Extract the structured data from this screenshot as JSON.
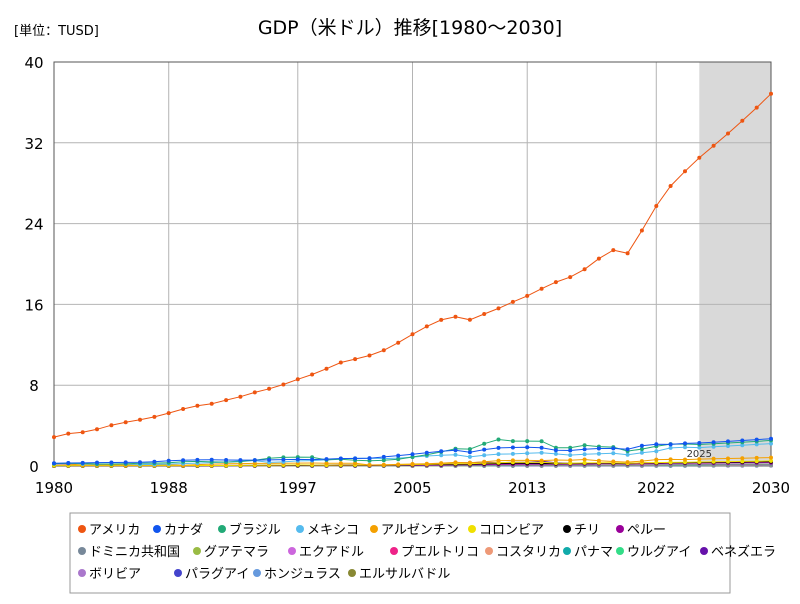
{
  "chart_data": {
    "type": "line",
    "title": "GDP（米ドル）推移[1980～2030]",
    "unit_label": "[単位：TUSD]",
    "forecast_label": "2025",
    "forecast_start": 2025,
    "xlim": [
      1980,
      2030
    ],
    "ylim": [
      0,
      40
    ],
    "x_ticks": [
      1980,
      1988,
      1997,
      2005,
      2013,
      2022,
      2030
    ],
    "y_ticks": [
      0,
      8,
      16,
      24,
      32,
      40
    ],
    "grid": true,
    "legend_position": "bottom",
    "x": [
      1980,
      1981,
      1982,
      1983,
      1984,
      1985,
      1986,
      1987,
      1988,
      1989,
      1990,
      1991,
      1992,
      1993,
      1994,
      1995,
      1996,
      1997,
      1998,
      1999,
      2000,
      2001,
      2002,
      2003,
      2004,
      2005,
      2006,
      2007,
      2008,
      2009,
      2010,
      2011,
      2012,
      2013,
      2014,
      2015,
      2016,
      2017,
      2018,
      2019,
      2020,
      2021,
      2022,
      2023,
      2024,
      2025,
      2026,
      2027,
      2028,
      2029,
      2030
    ],
    "series": [
      {
        "name": "アメリカ",
        "color": "#ee5511",
        "values": [
          2.86,
          3.21,
          3.34,
          3.63,
          4.04,
          4.34,
          4.58,
          4.86,
          5.24,
          5.64,
          5.96,
          6.16,
          6.52,
          6.86,
          7.29,
          7.64,
          8.07,
          8.58,
          9.06,
          9.63,
          10.25,
          10.58,
          10.94,
          11.46,
          12.21,
          13.04,
          13.82,
          14.47,
          14.77,
          14.48,
          15.05,
          15.6,
          16.25,
          16.84,
          17.55,
          18.21,
          18.7,
          19.48,
          20.53,
          21.38,
          21.06,
          23.32,
          25.74,
          27.72,
          29.18,
          30.51,
          31.71,
          32.92,
          34.18,
          35.49,
          36.85
        ]
      },
      {
        "name": "カナダ",
        "color": "#1155ee",
        "values": [
          0.27,
          0.3,
          0.31,
          0.34,
          0.35,
          0.36,
          0.37,
          0.43,
          0.51,
          0.57,
          0.6,
          0.61,
          0.59,
          0.58,
          0.58,
          0.6,
          0.63,
          0.65,
          0.63,
          0.68,
          0.74,
          0.74,
          0.76,
          0.9,
          1.03,
          1.17,
          1.32,
          1.47,
          1.55,
          1.37,
          1.62,
          1.79,
          1.83,
          1.85,
          1.81,
          1.56,
          1.53,
          1.65,
          1.73,
          1.74,
          1.65,
          2.01,
          2.16,
          2.14,
          2.24,
          2.28,
          2.35,
          2.44,
          2.52,
          2.61,
          2.7
        ]
      },
      {
        "name": "ブラジル",
        "color": "#22aa77",
        "values": [
          0.24,
          0.26,
          0.28,
          0.2,
          0.2,
          0.22,
          0.27,
          0.29,
          0.32,
          0.43,
          0.46,
          0.41,
          0.39,
          0.44,
          0.56,
          0.77,
          0.85,
          0.88,
          0.86,
          0.6,
          0.66,
          0.56,
          0.51,
          0.56,
          0.67,
          0.89,
          1.11,
          1.4,
          1.7,
          1.67,
          2.21,
          2.62,
          2.47,
          2.47,
          2.46,
          1.8,
          1.8,
          2.06,
          1.92,
          1.87,
          1.48,
          1.67,
          1.95,
          2.17,
          2.18,
          2.13,
          2.2,
          2.28,
          2.36,
          2.44,
          2.53
        ]
      },
      {
        "name": "メキシコ",
        "color": "#55bbee",
        "values": [
          0.23,
          0.29,
          0.2,
          0.17,
          0.2,
          0.21,
          0.15,
          0.16,
          0.2,
          0.24,
          0.29,
          0.34,
          0.39,
          0.5,
          0.53,
          0.36,
          0.41,
          0.5,
          0.53,
          0.6,
          0.71,
          0.76,
          0.77,
          0.73,
          0.78,
          0.88,
          0.99,
          1.06,
          1.11,
          0.9,
          1.06,
          1.18,
          1.2,
          1.27,
          1.32,
          1.2,
          1.08,
          1.16,
          1.22,
          1.27,
          1.12,
          1.31,
          1.47,
          1.79,
          1.85,
          1.82,
          1.9,
          1.98,
          2.06,
          2.14,
          2.22
        ]
      },
      {
        "name": "アルゼンチン",
        "color": "#f4a000",
        "values": [
          0.23,
          0.2,
          0.1,
          0.1,
          0.12,
          0.09,
          0.11,
          0.11,
          0.13,
          0.08,
          0.14,
          0.19,
          0.23,
          0.24,
          0.26,
          0.26,
          0.27,
          0.29,
          0.3,
          0.28,
          0.28,
          0.27,
          0.1,
          0.13,
          0.16,
          0.2,
          0.23,
          0.29,
          0.36,
          0.33,
          0.42,
          0.53,
          0.55,
          0.55,
          0.53,
          0.59,
          0.56,
          0.64,
          0.52,
          0.45,
          0.39,
          0.49,
          0.63,
          0.65,
          0.63,
          0.68,
          0.71,
          0.74,
          0.77,
          0.8,
          0.83
        ]
      },
      {
        "name": "コロンビア",
        "color": "#f0e000",
        "values": [
          0.04,
          0.04,
          0.04,
          0.04,
          0.04,
          0.04,
          0.04,
          0.04,
          0.04,
          0.04,
          0.05,
          0.05,
          0.05,
          0.06,
          0.08,
          0.09,
          0.1,
          0.11,
          0.1,
          0.09,
          0.1,
          0.1,
          0.1,
          0.09,
          0.12,
          0.15,
          0.16,
          0.21,
          0.24,
          0.23,
          0.29,
          0.33,
          0.37,
          0.38,
          0.38,
          0.29,
          0.28,
          0.31,
          0.33,
          0.32,
          0.27,
          0.32,
          0.34,
          0.36,
          0.38,
          0.4,
          0.42,
          0.44,
          0.46,
          0.48,
          0.5
        ]
      },
      {
        "name": "チリ",
        "color": "#000000",
        "values": [
          0.03,
          0.03,
          0.02,
          0.02,
          0.02,
          0.02,
          0.02,
          0.02,
          0.03,
          0.03,
          0.03,
          0.04,
          0.04,
          0.05,
          0.06,
          0.07,
          0.08,
          0.08,
          0.08,
          0.08,
          0.08,
          0.07,
          0.07,
          0.08,
          0.1,
          0.12,
          0.15,
          0.17,
          0.18,
          0.17,
          0.22,
          0.25,
          0.27,
          0.28,
          0.26,
          0.24,
          0.25,
          0.28,
          0.3,
          0.28,
          0.25,
          0.32,
          0.3,
          0.34,
          0.33,
          0.35,
          0.37,
          0.39,
          0.4,
          0.42,
          0.44
        ]
      },
      {
        "name": "ペルー",
        "color": "#990099",
        "values": [
          0.02,
          0.03,
          0.03,
          0.02,
          0.02,
          0.02,
          0.02,
          0.03,
          0.02,
          0.03,
          0.03,
          0.03,
          0.04,
          0.04,
          0.04,
          0.05,
          0.06,
          0.06,
          0.06,
          0.05,
          0.05,
          0.05,
          0.06,
          0.06,
          0.07,
          0.08,
          0.09,
          0.1,
          0.12,
          0.12,
          0.15,
          0.17,
          0.19,
          0.2,
          0.2,
          0.19,
          0.19,
          0.21,
          0.22,
          0.23,
          0.2,
          0.22,
          0.24,
          0.27,
          0.28,
          0.29,
          0.3,
          0.31,
          0.32,
          0.33,
          0.34
        ]
      },
      {
        "name": "ドミニカ共和国",
        "color": "#778899",
        "values": [
          0.01,
          0.01,
          0.01,
          0.01,
          0.01,
          0.01,
          0.01,
          0.01,
          0.01,
          0.01,
          0.01,
          0.01,
          0.01,
          0.01,
          0.02,
          0.02,
          0.02,
          0.02,
          0.02,
          0.02,
          0.02,
          0.03,
          0.03,
          0.02,
          0.02,
          0.04,
          0.04,
          0.04,
          0.05,
          0.05,
          0.05,
          0.06,
          0.06,
          0.06,
          0.07,
          0.07,
          0.07,
          0.08,
          0.08,
          0.09,
          0.08,
          0.09,
          0.11,
          0.12,
          0.12,
          0.13,
          0.14,
          0.15,
          0.16,
          0.17,
          0.18
        ]
      },
      {
        "name": "グアテマラ",
        "color": "#99bb44",
        "values": [
          0.01,
          0.01,
          0.01,
          0.01,
          0.01,
          0.01,
          0.01,
          0.01,
          0.01,
          0.01,
          0.01,
          0.01,
          0.01,
          0.01,
          0.01,
          0.01,
          0.02,
          0.02,
          0.02,
          0.02,
          0.02,
          0.02,
          0.02,
          0.02,
          0.02,
          0.03,
          0.03,
          0.03,
          0.04,
          0.04,
          0.04,
          0.05,
          0.05,
          0.05,
          0.06,
          0.06,
          0.07,
          0.07,
          0.07,
          0.08,
          0.08,
          0.09,
          0.1,
          0.1,
          0.11,
          0.12,
          0.12,
          0.13,
          0.14,
          0.14,
          0.15
        ]
      },
      {
        "name": "エクアドル",
        "color": "#cc66dd",
        "values": [
          0.02,
          0.02,
          0.02,
          0.02,
          0.02,
          0.02,
          0.02,
          0.02,
          0.02,
          0.02,
          0.02,
          0.02,
          0.02,
          0.02,
          0.02,
          0.03,
          0.03,
          0.03,
          0.03,
          0.02,
          0.02,
          0.02,
          0.03,
          0.03,
          0.04,
          0.04,
          0.05,
          0.05,
          0.06,
          0.06,
          0.07,
          0.08,
          0.09,
          0.1,
          0.1,
          0.1,
          0.1,
          0.1,
          0.11,
          0.11,
          0.1,
          0.11,
          0.12,
          0.12,
          0.12,
          0.13,
          0.13,
          0.14,
          0.14,
          0.15,
          0.15
        ]
      },
      {
        "name": "プエルトリコ",
        "color": "#ee2288",
        "values": [
          0.01,
          0.02,
          0.02,
          0.02,
          0.02,
          0.02,
          0.02,
          0.02,
          0.03,
          0.03,
          0.03,
          0.03,
          0.03,
          0.04,
          0.04,
          0.04,
          0.04,
          0.05,
          0.05,
          0.05,
          0.06,
          0.07,
          0.07,
          0.07,
          0.08,
          0.08,
          0.09,
          0.09,
          0.09,
          0.1,
          0.1,
          0.1,
          0.1,
          0.1,
          0.1,
          0.1,
          0.1,
          0.1,
          0.1,
          0.1,
          0.1,
          0.11,
          0.11,
          0.12,
          0.12,
          0.12,
          0.12,
          0.13,
          0.13,
          0.13,
          0.14
        ]
      },
      {
        "name": "コスタリカ",
        "color": "#ee9977",
        "values": [
          0.01,
          0.01,
          0.01,
          0.01,
          0.01,
          0.01,
          0.01,
          0.01,
          0.01,
          0.01,
          0.01,
          0.01,
          0.01,
          0.01,
          0.01,
          0.01,
          0.01,
          0.01,
          0.01,
          0.01,
          0.01,
          0.02,
          0.02,
          0.02,
          0.02,
          0.02,
          0.02,
          0.03,
          0.03,
          0.03,
          0.04,
          0.04,
          0.05,
          0.05,
          0.05,
          0.05,
          0.06,
          0.06,
          0.06,
          0.06,
          0.06,
          0.06,
          0.07,
          0.09,
          0.1,
          0.1,
          0.1,
          0.11,
          0.11,
          0.12,
          0.12
        ]
      },
      {
        "name": "パナマ",
        "color": "#11aaaa",
        "values": [
          0.01,
          0.01,
          0.01,
          0.01,
          0.01,
          0.01,
          0.01,
          0.01,
          0.01,
          0.01,
          0.01,
          0.01,
          0.01,
          0.01,
          0.01,
          0.01,
          0.01,
          0.01,
          0.01,
          0.01,
          0.01,
          0.01,
          0.01,
          0.01,
          0.02,
          0.02,
          0.02,
          0.02,
          0.03,
          0.03,
          0.03,
          0.03,
          0.04,
          0.05,
          0.05,
          0.05,
          0.06,
          0.06,
          0.06,
          0.07,
          0.05,
          0.06,
          0.08,
          0.08,
          0.09,
          0.09,
          0.1,
          0.1,
          0.11,
          0.11,
          0.12
        ]
      },
      {
        "name": "ウルグアイ",
        "color": "#33dd88",
        "values": [
          0.01,
          0.01,
          0.01,
          0.01,
          0.01,
          0.01,
          0.01,
          0.01,
          0.01,
          0.01,
          0.01,
          0.01,
          0.01,
          0.02,
          0.02,
          0.02,
          0.02,
          0.02,
          0.02,
          0.02,
          0.02,
          0.02,
          0.01,
          0.01,
          0.01,
          0.02,
          0.02,
          0.02,
          0.03,
          0.03,
          0.04,
          0.05,
          0.05,
          0.06,
          0.06,
          0.05,
          0.05,
          0.06,
          0.06,
          0.06,
          0.05,
          0.06,
          0.07,
          0.08,
          0.08,
          0.08,
          0.08,
          0.09,
          0.09,
          0.09,
          0.1
        ]
      },
      {
        "name": "ベネズエラ",
        "color": "#6611aa",
        "values": [
          0.07,
          0.08,
          0.08,
          0.08,
          0.06,
          0.06,
          0.06,
          0.05,
          0.06,
          0.04,
          0.05,
          0.05,
          0.06,
          0.06,
          0.06,
          0.08,
          0.07,
          0.09,
          0.09,
          0.1,
          0.12,
          0.12,
          0.09,
          0.08,
          0.11,
          0.14,
          0.18,
          0.23,
          0.32,
          0.33,
          0.39,
          0.32,
          0.38,
          0.37,
          0.48,
          0.32,
          0.28,
          0.21,
          0.1,
          0.06,
          0.05,
          0.05,
          0.09,
          0.09,
          0.1,
          0.1,
          0.1,
          0.1,
          0.11,
          0.11,
          0.11
        ]
      },
      {
        "name": "ボリビア",
        "color": "#aa77cc",
        "values": [
          0.01,
          0.01,
          0.01,
          0.01,
          0.01,
          0.01,
          0.01,
          0.01,
          0.01,
          0.01,
          0.01,
          0.01,
          0.01,
          0.01,
          0.01,
          0.01,
          0.01,
          0.01,
          0.01,
          0.01,
          0.01,
          0.01,
          0.01,
          0.01,
          0.01,
          0.01,
          0.01,
          0.01,
          0.02,
          0.02,
          0.02,
          0.02,
          0.03,
          0.03,
          0.03,
          0.03,
          0.03,
          0.04,
          0.04,
          0.04,
          0.04,
          0.04,
          0.04,
          0.05,
          0.05,
          0.05,
          0.05,
          0.05,
          0.05,
          0.06,
          0.06
        ]
      },
      {
        "name": "パラグアイ",
        "color": "#4444cc",
        "values": [
          0.01,
          0.01,
          0.01,
          0.01,
          0.01,
          0.01,
          0.01,
          0.01,
          0.01,
          0.01,
          0.01,
          0.01,
          0.01,
          0.01,
          0.01,
          0.01,
          0.01,
          0.01,
          0.01,
          0.01,
          0.01,
          0.01,
          0.01,
          0.01,
          0.01,
          0.01,
          0.01,
          0.01,
          0.02,
          0.02,
          0.02,
          0.03,
          0.03,
          0.03,
          0.03,
          0.03,
          0.03,
          0.04,
          0.04,
          0.04,
          0.04,
          0.04,
          0.04,
          0.04,
          0.04,
          0.05,
          0.05,
          0.05,
          0.05,
          0.05,
          0.06
        ]
      },
      {
        "name": "ホンジュラス",
        "color": "#6699dd",
        "values": [
          0.01,
          0.01,
          0.01,
          0.01,
          0.01,
          0.01,
          0.01,
          0.01,
          0.01,
          0.01,
          0.01,
          0.01,
          0.01,
          0.01,
          0.01,
          0.01,
          0.01,
          0.01,
          0.01,
          0.01,
          0.01,
          0.01,
          0.01,
          0.01,
          0.01,
          0.01,
          0.01,
          0.01,
          0.01,
          0.01,
          0.02,
          0.02,
          0.02,
          0.02,
          0.02,
          0.02,
          0.02,
          0.02,
          0.02,
          0.03,
          0.02,
          0.03,
          0.03,
          0.03,
          0.04,
          0.04,
          0.04,
          0.04,
          0.04,
          0.04,
          0.05
        ]
      },
      {
        "name": "エルサルバドル",
        "color": "#888833",
        "values": [
          0.01,
          0.01,
          0.01,
          0.01,
          0.01,
          0.01,
          0.01,
          0.01,
          0.01,
          0.01,
          0.01,
          0.01,
          0.01,
          0.01,
          0.01,
          0.01,
          0.01,
          0.01,
          0.01,
          0.01,
          0.01,
          0.01,
          0.01,
          0.01,
          0.02,
          0.02,
          0.02,
          0.02,
          0.02,
          0.02,
          0.02,
          0.02,
          0.02,
          0.02,
          0.02,
          0.02,
          0.02,
          0.02,
          0.03,
          0.03,
          0.02,
          0.03,
          0.03,
          0.03,
          0.03,
          0.04,
          0.04,
          0.04,
          0.04,
          0.04,
          0.04
        ]
      }
    ]
  }
}
